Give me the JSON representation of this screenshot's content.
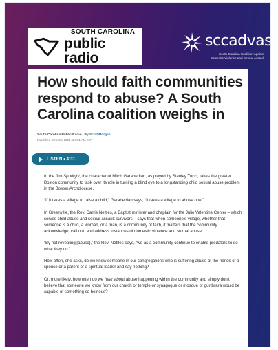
{
  "header": {
    "logo_top": "SOUTH CAROLINA",
    "logo_main": "public radio",
    "partner_name": "sccadvasa",
    "partner_sub_1": "South Carolina Coalition Against",
    "partner_sub_2": "Domestic Violence and Sexual Assault"
  },
  "article": {
    "title": "How should faith communities respond to abuse? A South Carolina coalition weighs in",
    "source": "South Carolina Public Radio | By ",
    "author": "Scott Morgan",
    "published": "Published June 20, 2023 at 6:51 AM EDT",
    "listen_label": "LISTEN • 4:31",
    "p1_a": "In the film ",
    "p1_em": "Spotlight",
    "p1_b": ", the character of Mitch Garabedian, as played by Stanley Tucci, takes the greater Boston community to task over its role in turning a blind eye to a longstanding child sexual abuse problem in the Boston Archdiocese.",
    "p2": "“If it takes a village to raise a child,” Garabedian says, “it takes a village to abuse one.”",
    "p3": "In Greenville, the Rev. Carrie Nettles, a Baptist minister and chaplain for the Julie Valentine Center – which serves child abuse and sexual assault survivors – says that when someone's village, whether that someone is a child, a woman, or a man, is a community of faith, it matters that the community acknowledge, call out, and address instances of domestic violence and sexual abuse.",
    "p4": "“By not revealing [abuse],” the Rev. Nettles says, “we as a community continue to enable predators to do what they do.”",
    "p5": "How often, she asks, do we know someone in our congregations who is suffering abuse at the hands of a spouse or a parent or a spiritual leader and say nothing?",
    "p6_a": "Or, more likely, how often do we ",
    "p6_em": "hear about",
    "p6_b": " abuse happening within the community and simply don't believe that someone we know from our church or temple or synagogue or mosque or gurdwara would be capable of something so heinous?"
  },
  "colors": {
    "accent": "#1a6e8e",
    "author_link": "#1f6fa8",
    "bg_left": "#6b1f5c",
    "bg_right": "#1c2a73"
  },
  "icons": {
    "state_outline": "south-carolina-outline-icon",
    "partner_mark": "starburst-icon",
    "play": "play-icon"
  }
}
